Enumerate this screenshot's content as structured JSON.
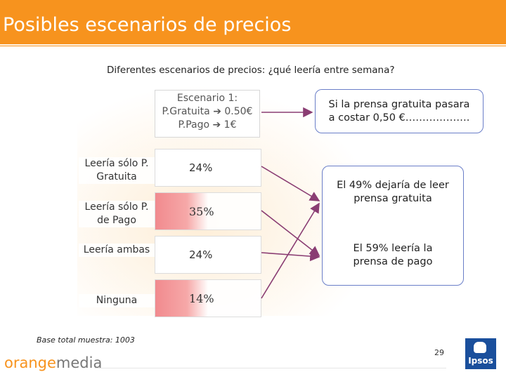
{
  "title": "Posibles escenarios de precios",
  "subtitle": "Diferentes escenarios de precios: ¿qué leería entre semana?",
  "scenario": {
    "line1": "Escenario 1:",
    "line2": "P.Gratuita ➔ 0.50€",
    "line3": "P.Pago ➔ 1€"
  },
  "rows": [
    {
      "label_l1": "Leería sólo P.",
      "label_l2": "Gratuita",
      "value": "24%"
    },
    {
      "label_l1": "Leería  sólo P.",
      "label_l2": "de Pago",
      "value": "35%"
    },
    {
      "label_l1": "Leería ambas",
      "label_l2": "",
      "value": "24%"
    },
    {
      "label_l1": "Ninguna",
      "label_l2": "",
      "value": "14%"
    }
  ],
  "callouts": {
    "top_l1": "Si la prensa gratuita pasara",
    "top_l2": "a costar 0,50 €……………….",
    "bottom_a_l1": "El 49% dejaría de leer",
    "bottom_a_l2": "prensa gratuita",
    "bottom_b_l1": "El 59% leería la",
    "bottom_b_l2": "prensa de pago"
  },
  "base_note": "Base total muestra: 1003",
  "page_number": "29",
  "logo_orange": "orange",
  "logo_media": "media",
  "ipsos": "Ipsos",
  "colors": {
    "accent": "#f7931e",
    "callout_border": "#6a7ec8",
    "arrow": "#8a3d73",
    "ipsos": "#1a4f9c"
  }
}
